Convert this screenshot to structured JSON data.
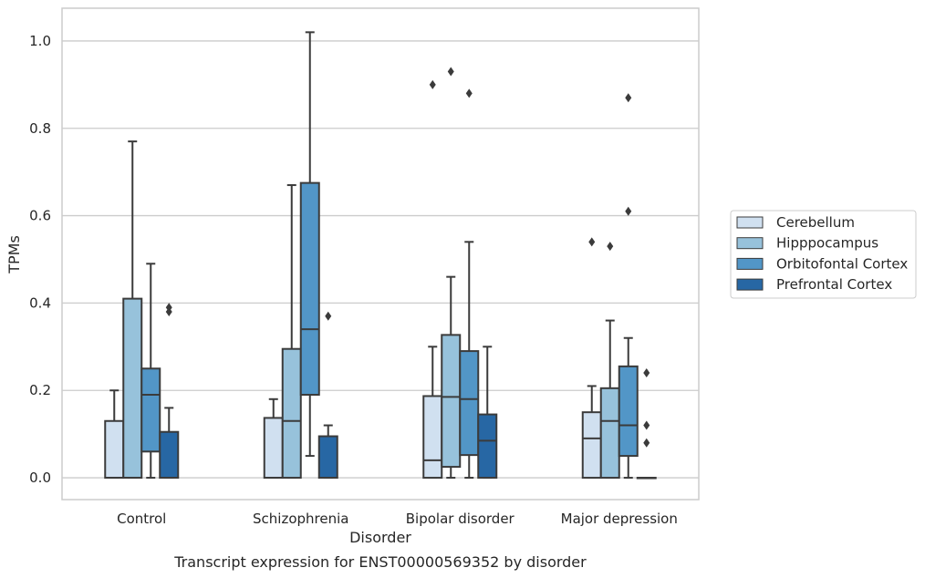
{
  "caption": "Transcript expression for ENST00000569352 by disorder",
  "chart_data": {
    "type": "box",
    "xlabel": "Disorder",
    "ylabel": "TPMs",
    "ylim": [
      -0.05,
      1.075
    ],
    "yticks": [
      0.0,
      0.2,
      0.4,
      0.6,
      0.8,
      1.0
    ],
    "ytick_labels": [
      "0.0",
      "0.2",
      "0.4",
      "0.6",
      "0.8",
      "1.0"
    ],
    "grid": "horizontal",
    "legend_position": "right",
    "categories": [
      "Control",
      "Schizophrenia",
      "Bipolar disorder",
      "Major depression"
    ],
    "series": [
      {
        "name": "Cerebellum",
        "color": "#d0e0f0",
        "boxes": [
          {
            "whislo": 0.0,
            "q1": 0.0,
            "med": 0.0,
            "q3": 0.13,
            "whishi": 0.2,
            "fliers": []
          },
          {
            "whislo": 0.0,
            "q1": 0.0,
            "med": 0.0,
            "q3": 0.137,
            "whishi": 0.18,
            "fliers": []
          },
          {
            "whislo": 0.0,
            "q1": 0.0,
            "med": 0.04,
            "q3": 0.187,
            "whishi": 0.3,
            "fliers": [
              0.9
            ]
          },
          {
            "whislo": 0.0,
            "q1": 0.0,
            "med": 0.09,
            "q3": 0.15,
            "whishi": 0.21,
            "fliers": [
              0.54
            ]
          }
        ]
      },
      {
        "name": "Hipppocampus",
        "color": "#97c2db",
        "boxes": [
          {
            "whislo": 0.0,
            "q1": 0.0,
            "med": 0.0,
            "q3": 0.41,
            "whishi": 0.77,
            "fliers": []
          },
          {
            "whislo": 0.0,
            "q1": 0.0,
            "med": 0.13,
            "q3": 0.295,
            "whishi": 0.67,
            "fliers": []
          },
          {
            "whislo": 0.0,
            "q1": 0.025,
            "med": 0.185,
            "q3": 0.327,
            "whishi": 0.46,
            "fliers": [
              0.93
            ]
          },
          {
            "whislo": 0.0,
            "q1": 0.0,
            "med": 0.13,
            "q3": 0.205,
            "whishi": 0.36,
            "fliers": [
              0.53
            ]
          }
        ]
      },
      {
        "name": "Orbitofontal Cortex",
        "color": "#5296c7",
        "boxes": [
          {
            "whislo": 0.0,
            "q1": 0.06,
            "med": 0.19,
            "q3": 0.25,
            "whishi": 0.49,
            "fliers": []
          },
          {
            "whislo": 0.05,
            "q1": 0.19,
            "med": 0.34,
            "q3": 0.675,
            "whishi": 1.02,
            "fliers": []
          },
          {
            "whislo": 0.0,
            "q1": 0.052,
            "med": 0.18,
            "q3": 0.29,
            "whishi": 0.54,
            "fliers": [
              0.88
            ]
          },
          {
            "whislo": 0.0,
            "q1": 0.05,
            "med": 0.12,
            "q3": 0.255,
            "whishi": 0.32,
            "fliers": [
              0.61,
              0.87
            ]
          }
        ]
      },
      {
        "name": "Prefrontal Cortex",
        "color": "#2767a4",
        "boxes": [
          {
            "whislo": 0.0,
            "q1": 0.0,
            "med": 0.0,
            "q3": 0.105,
            "whishi": 0.16,
            "fliers": [
              0.38,
              0.39
            ]
          },
          {
            "whislo": 0.0,
            "q1": 0.0,
            "med": 0.0,
            "q3": 0.095,
            "whishi": 0.12,
            "fliers": [
              0.37
            ]
          },
          {
            "whislo": 0.0,
            "q1": 0.0,
            "med": 0.085,
            "q3": 0.145,
            "whishi": 0.3,
            "fliers": []
          },
          {
            "whislo": 0.0,
            "q1": 0.0,
            "med": 0.0,
            "q3": 0.0,
            "whishi": 0.0,
            "fliers": [
              0.08,
              0.12,
              0.24
            ]
          }
        ]
      }
    ]
  }
}
